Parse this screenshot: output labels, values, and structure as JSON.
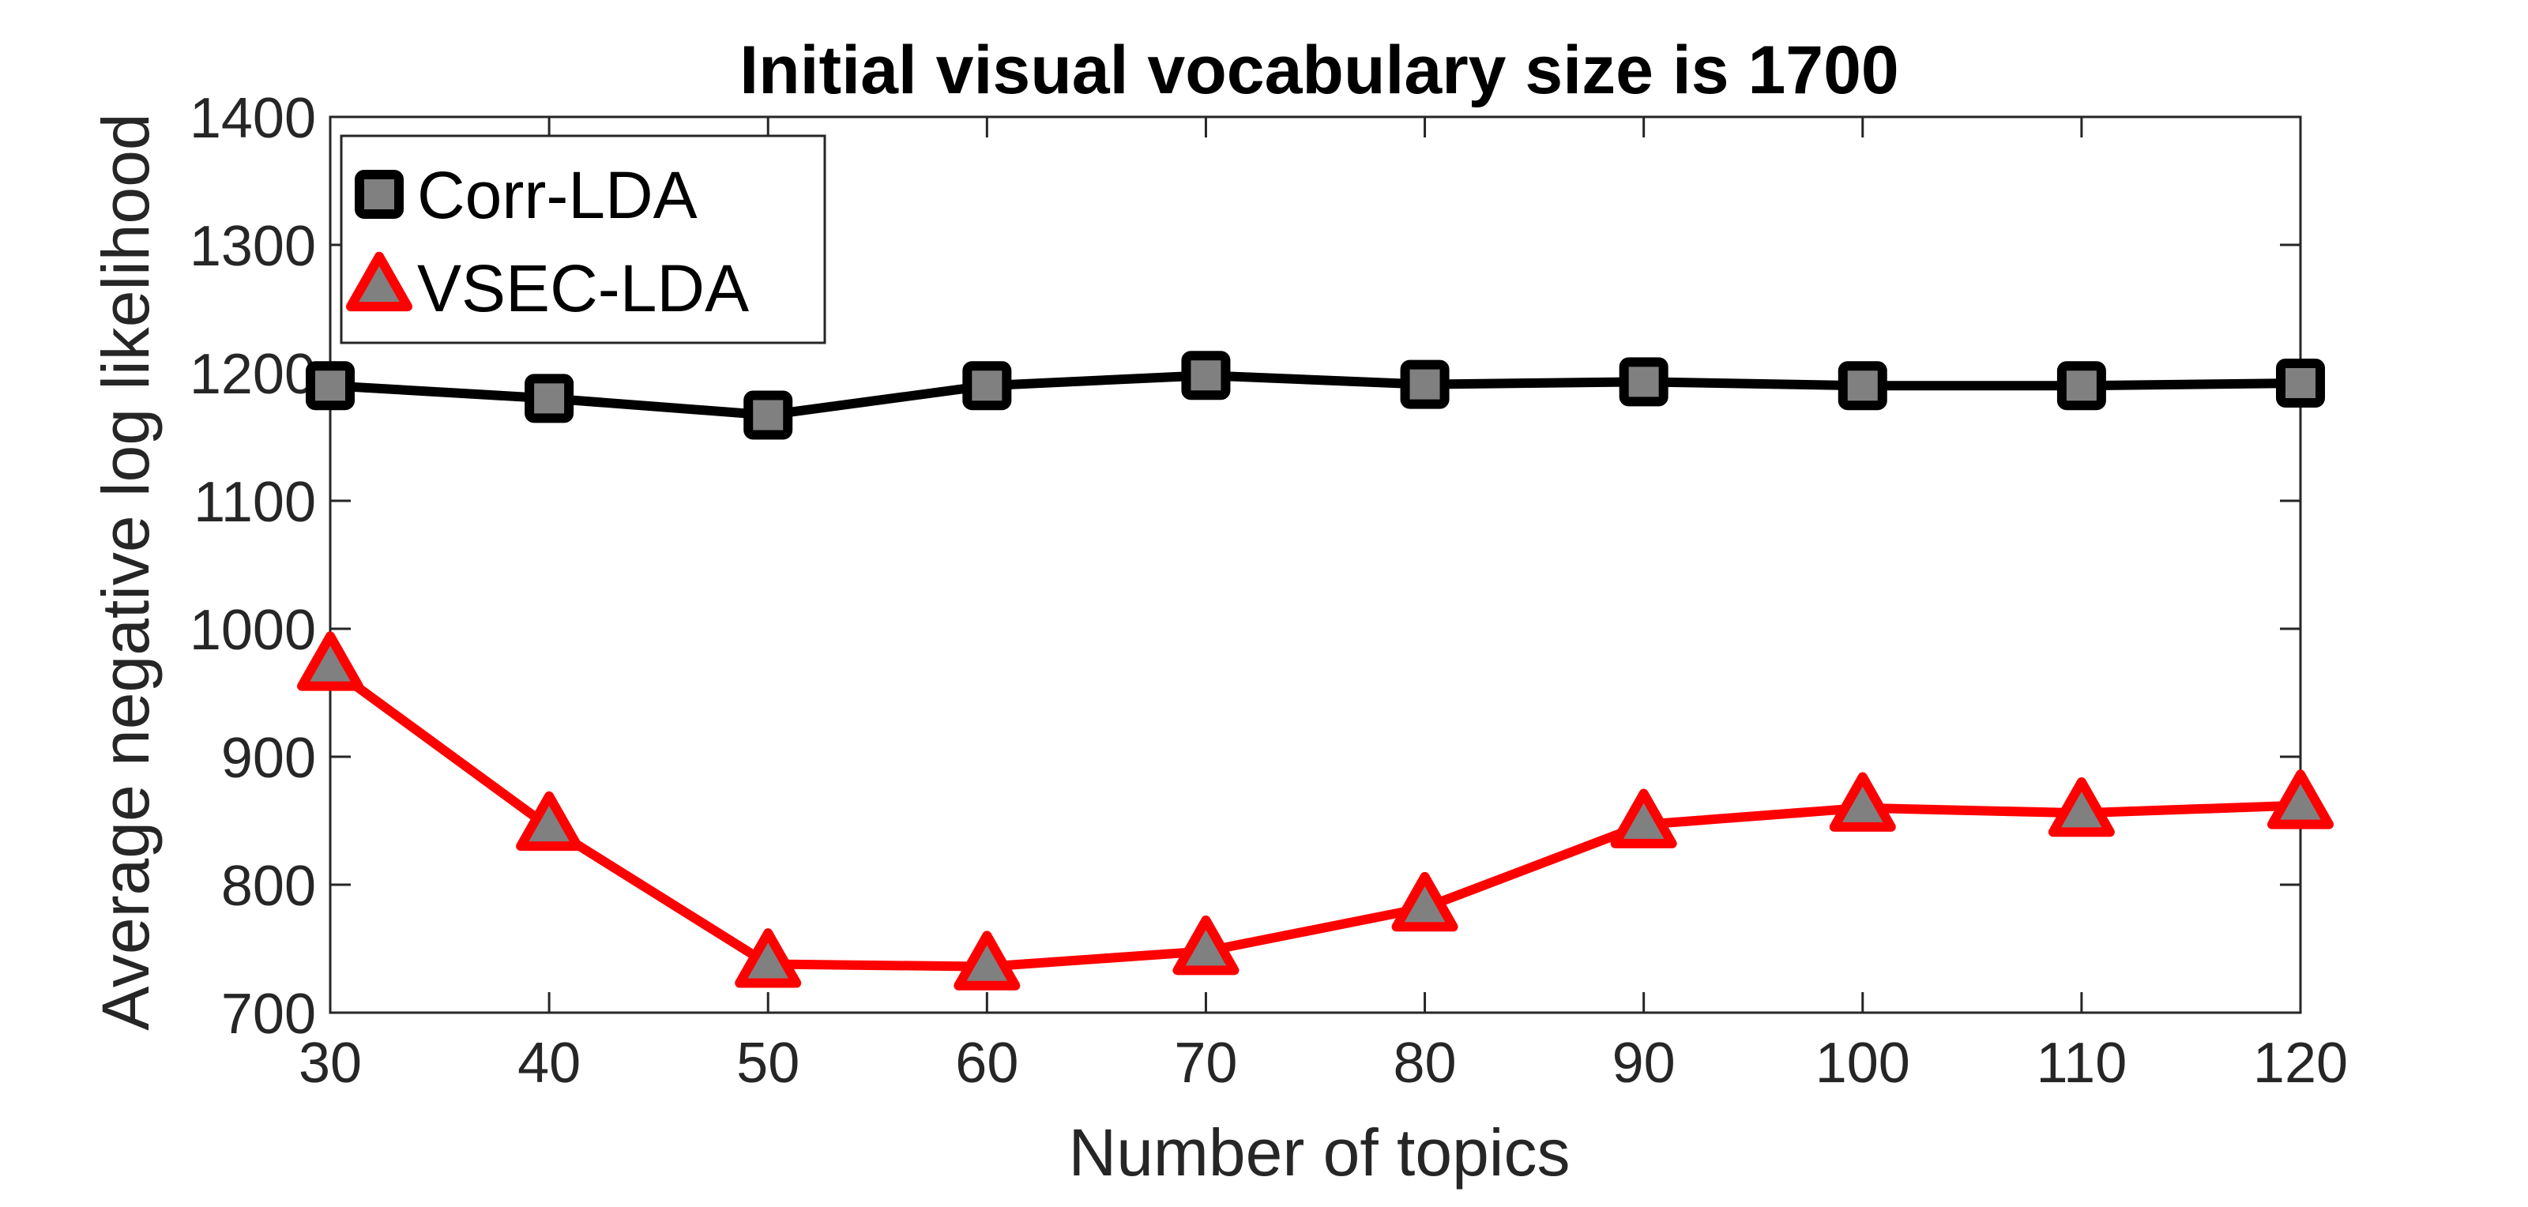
{
  "chart_data": {
    "type": "line",
    "title": "Initial visual vocabulary size is 1700",
    "xlabel": "Number of topics",
    "ylabel": "Average negative log likelihood",
    "x": [
      30,
      40,
      50,
      60,
      70,
      80,
      90,
      100,
      110,
      120
    ],
    "xlim": [
      30,
      120
    ],
    "ylim": [
      700,
      1400
    ],
    "xticks": [
      30,
      40,
      50,
      60,
      70,
      80,
      90,
      100,
      110,
      120
    ],
    "yticks": [
      700,
      800,
      900,
      1000,
      1100,
      1200,
      1300,
      1400
    ],
    "grid": false,
    "legend_position": "top-left",
    "series": [
      {
        "name": "Corr-LDA",
        "marker": "square",
        "color": "#000000",
        "marker_fill": "#808080",
        "values": [
          1190,
          1180,
          1167,
          1190,
          1198,
          1191,
          1193,
          1190,
          1190,
          1192
        ]
      },
      {
        "name": "VSEC-LDA",
        "marker": "triangle",
        "color": "#ff0000",
        "marker_fill": "#808080",
        "values": [
          970,
          845,
          738,
          736,
          748,
          782,
          847,
          860,
          856,
          862
        ]
      }
    ]
  }
}
